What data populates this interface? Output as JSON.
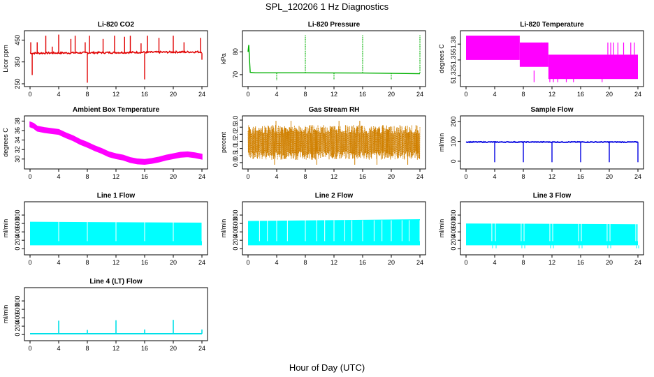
{
  "page": {
    "title": "SPL_120206  1 Hz Diagnostics",
    "x_axis_title": "Hour of Day (UTC)"
  },
  "chart_data": [
    {
      "id": "co2",
      "type": "line",
      "title": "Li-820 CO2",
      "ylabel": "Licor ppm",
      "color": "#e00000",
      "xlim": [
        0,
        24
      ],
      "xticks": [
        0,
        4,
        8,
        12,
        16,
        20,
        24
      ],
      "ylim": [
        250,
        480
      ],
      "yticks": [
        250,
        350,
        450
      ],
      "baseline": 390,
      "band": 4,
      "drift": 6,
      "spikes": [
        {
          "x": 0.1,
          "y": 440
        },
        {
          "x": 0.3,
          "y": 290
        },
        {
          "x": 1.0,
          "y": 440
        },
        {
          "x": 2.2,
          "y": 470
        },
        {
          "x": 3.1,
          "y": 420
        },
        {
          "x": 4.0,
          "y": 475
        },
        {
          "x": 5.7,
          "y": 455
        },
        {
          "x": 6.3,
          "y": 470
        },
        {
          "x": 7.7,
          "y": 440
        },
        {
          "x": 8.0,
          "y": 255
        },
        {
          "x": 8.3,
          "y": 470
        },
        {
          "x": 10.2,
          "y": 455
        },
        {
          "x": 11.8,
          "y": 470
        },
        {
          "x": 13.2,
          "y": 465
        },
        {
          "x": 14.0,
          "y": 470
        },
        {
          "x": 15.5,
          "y": 435
        },
        {
          "x": 16.0,
          "y": 270
        },
        {
          "x": 16.4,
          "y": 470
        },
        {
          "x": 18.0,
          "y": 460
        },
        {
          "x": 20.0,
          "y": 470
        },
        {
          "x": 21.5,
          "y": 440
        },
        {
          "x": 23.8,
          "y": 460
        },
        {
          "x": 24.0,
          "y": 360
        }
      ]
    },
    {
      "id": "pressure",
      "type": "line",
      "title": "Li-820 Pressure",
      "ylabel": "kPa",
      "color": "#00b000",
      "xlim": [
        0,
        24
      ],
      "xticks": [
        0,
        4,
        8,
        12,
        16,
        20,
        24
      ],
      "ylim": [
        66,
        88
      ],
      "yticks": [
        70,
        80
      ],
      "segments": [
        {
          "x": [
            0.0,
            0.1,
            0.3,
            1.0,
            8.0,
            16.0,
            24.0
          ],
          "y": [
            80.0,
            83.0,
            71.0,
            70.8,
            70.8,
            70.7,
            70.4
          ]
        }
      ],
      "spikes": [
        {
          "x": 4.0,
          "y": 67.5
        },
        {
          "x": 8.0,
          "y": 87.5
        },
        {
          "x": 12.0,
          "y": 68
        },
        {
          "x": 16.0,
          "y": 87.5
        },
        {
          "x": 20.0,
          "y": 68
        },
        {
          "x": 24.0,
          "y": 87.5
        }
      ]
    },
    {
      "id": "licor-temp",
      "type": "area",
      "title": "Li-820 Temperature",
      "ylabel": "degrees C",
      "color": "#ff00ff",
      "xlim": [
        0,
        24
      ],
      "xticks": [
        0,
        4,
        8,
        12,
        16,
        20,
        24
      ],
      "ylim": [
        51.305,
        51.4
      ],
      "yticks": [
        51.32,
        51.35,
        51.38
      ],
      "bands": [
        {
          "x0": 0.0,
          "x1": 7.5,
          "lo": 51.35,
          "hi": 51.396
        },
        {
          "x0": 7.5,
          "x1": 11.5,
          "lo": 51.337,
          "hi": 51.383
        },
        {
          "x0": 11.5,
          "x1": 24.0,
          "lo": 51.314,
          "hi": 51.36
        }
      ],
      "spikes_up": [
        10.5,
        11.0,
        11.3,
        19.8,
        20.2,
        20.6,
        21.2,
        22.0,
        23.0,
        23.5
      ],
      "spikes_down": [
        9.5,
        11.7,
        12.2,
        12.8,
        14.0,
        15.0,
        19.0
      ]
    },
    {
      "id": "box-temp",
      "type": "line",
      "title": "Ambient Box Temperature",
      "ylabel": "degrees C",
      "color": "#ff00ff",
      "xlim": [
        0,
        24
      ],
      "xticks": [
        0,
        4,
        8,
        12,
        16,
        20,
        24
      ],
      "ylim": [
        28.5,
        38.5
      ],
      "yticks": [
        30,
        32,
        34,
        36,
        38
      ],
      "x": [
        0,
        0.5,
        1,
        2,
        3,
        4,
        5,
        6,
        7,
        8,
        9,
        10,
        11,
        12,
        13,
        14,
        15,
        16,
        17,
        18,
        19,
        20,
        21,
        22,
        23,
        24
      ],
      "y": [
        37.3,
        37.0,
        36.4,
        36.1,
        35.9,
        35.7,
        35.0,
        34.4,
        33.6,
        33.0,
        32.3,
        31.7,
        31.0,
        30.6,
        30.3,
        29.8,
        29.5,
        29.4,
        29.6,
        29.9,
        30.3,
        30.6,
        30.9,
        31.0,
        30.8,
        30.5
      ],
      "band": 0.5
    },
    {
      "id": "rh",
      "type": "line",
      "title": "Gas Stream RH",
      "ylabel": "percent",
      "color": "#d08000",
      "xlim": [
        0,
        24
      ],
      "xticks": [
        0,
        4,
        8,
        12,
        16,
        20,
        24
      ],
      "ylim": [
        -0.25,
        3.1
      ],
      "yticks": [
        0.0,
        0.5,
        1.0,
        1.5,
        2.0,
        2.5,
        3.0
      ],
      "center": 1.4,
      "band_lo": 0.2,
      "band_hi": 2.65,
      "extreme_lo": -0.15,
      "extreme_hi": 2.95
    },
    {
      "id": "sample-flow",
      "type": "line",
      "title": "Sample Flow",
      "ylabel": "ml/min",
      "color": "#0000e0",
      "xlim": [
        0,
        24
      ],
      "xticks": [
        0,
        4,
        8,
        12,
        16,
        20,
        24
      ],
      "ylim": [
        -25,
        215
      ],
      "yticks": [
        0,
        100,
        200
      ],
      "baseline": 97,
      "band": 4,
      "dips": [
        {
          "x": 4.0,
          "y": -5
        },
        {
          "x": 8.0,
          "y": -5
        },
        {
          "x": 12.0,
          "y": -5
        },
        {
          "x": 16.0,
          "y": -5
        },
        {
          "x": 20.0,
          "y": -5
        },
        {
          "x": 24.0,
          "y": -5
        }
      ]
    },
    {
      "id": "line1",
      "type": "area",
      "title": "Line 1 Flow",
      "ylabel": "ml/min",
      "color": "#00ffff",
      "xlim": [
        0,
        24
      ],
      "xticks": [
        0,
        4,
        8,
        12,
        16,
        20,
        24
      ],
      "ylim": [
        -80,
        1050
      ],
      "yticks": [
        0,
        200,
        400,
        600,
        800
      ],
      "lo": 80,
      "hi": 640,
      "hi_end": 620,
      "gaps": [
        4.0,
        8.0,
        12.0,
        16.0,
        20.0,
        24.0
      ],
      "gap_low": 80
    },
    {
      "id": "line2",
      "type": "area",
      "title": "Line 2 Flow",
      "ylabel": "ml/min",
      "color": "#00ffff",
      "xlim": [
        0,
        24
      ],
      "xticks": [
        0,
        4,
        8,
        12,
        16,
        20,
        24
      ],
      "ylim": [
        -80,
        1050
      ],
      "yticks": [
        0,
        200,
        400,
        600,
        800
      ],
      "lo": 80,
      "hi": 660,
      "hi_end": 700,
      "gaps": [
        1.6,
        2.7,
        4.0,
        5.5,
        8.0,
        9.6,
        10.7,
        12.0,
        13.5,
        14.5,
        16.0,
        17.6,
        18.7,
        20.0,
        21.5,
        22.5,
        24.0
      ],
      "gap_low": 80
    },
    {
      "id": "line3",
      "type": "area",
      "title": "Line 3 Flow",
      "ylabel": "ml/min",
      "color": "#00ffff",
      "xlim": [
        0,
        24
      ],
      "xticks": [
        0,
        4,
        8,
        12,
        16,
        20,
        24
      ],
      "ylim": [
        -80,
        1050
      ],
      "yticks": [
        0,
        200,
        400,
        600,
        800
      ],
      "lo": 80,
      "hi": 600,
      "hi_end": 580,
      "gaps": [
        3.6,
        4.1,
        7.7,
        8.1,
        11.7,
        12.1,
        15.7,
        16.1,
        19.7,
        20.1,
        23.7,
        24.0
      ],
      "gap_low": 10
    },
    {
      "id": "line4",
      "type": "line",
      "title": "Line 4 (LT) Flow",
      "ylabel": "ml/min",
      "color": "#00e0e8",
      "xlim": [
        0,
        24
      ],
      "xticks": [
        0,
        4,
        8,
        12,
        16,
        20,
        24
      ],
      "ylim": [
        -80,
        1050
      ],
      "yticks": [
        0,
        200,
        400,
        600,
        800
      ],
      "baseline": 20,
      "spikes": [
        {
          "x": 4.0,
          "y": 330
        },
        {
          "x": 8.0,
          "y": 110
        },
        {
          "x": 12.0,
          "y": 340
        },
        {
          "x": 16.0,
          "y": 120
        },
        {
          "x": 20.0,
          "y": 350
        },
        {
          "x": 24.0,
          "y": 120
        }
      ]
    }
  ]
}
